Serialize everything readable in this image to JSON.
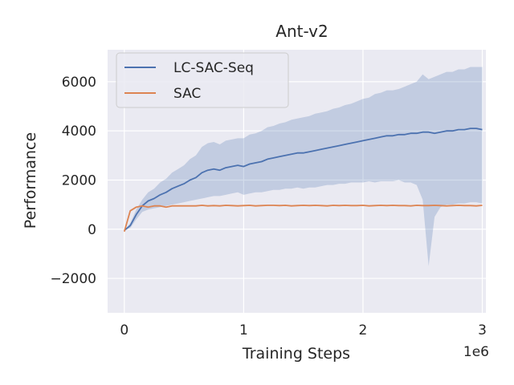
{
  "chart_data": {
    "type": "line",
    "title": "Ant-v2",
    "xlabel": "Training Steps",
    "ylabel": "Performance",
    "x_scale_label": "1e6",
    "xlim": [
      -140000,
      3030000
    ],
    "ylim": [
      -3400,
      7300
    ],
    "xticks": [
      0,
      1000000,
      2000000,
      3000000
    ],
    "xtick_labels": [
      "0",
      "1",
      "2",
      "3"
    ],
    "yticks": [
      -2000,
      0,
      2000,
      4000,
      6000
    ],
    "ytick_labels": [
      "−2000",
      "0",
      "2000",
      "4000",
      "6000"
    ],
    "grid": true,
    "legend_position": "top-left",
    "background_color": "#eaeaf2",
    "series": [
      {
        "name": "LC-SAC-Seq",
        "color": "#4c72b0",
        "x": [
          0,
          50000,
          100000,
          150000,
          200000,
          250000,
          300000,
          350000,
          400000,
          450000,
          500000,
          550000,
          600000,
          650000,
          700000,
          750000,
          800000,
          850000,
          900000,
          950000,
          1000000,
          1050000,
          1100000,
          1150000,
          1200000,
          1250000,
          1300000,
          1350000,
          1400000,
          1450000,
          1500000,
          1550000,
          1600000,
          1650000,
          1700000,
          1750000,
          1800000,
          1850000,
          1900000,
          1950000,
          2000000,
          2050000,
          2100000,
          2150000,
          2200000,
          2250000,
          2300000,
          2350000,
          2400000,
          2450000,
          2500000,
          2550000,
          2600000,
          2650000,
          2700000,
          2750000,
          2800000,
          2850000,
          2900000,
          2950000,
          3000000
        ],
        "values": [
          -50,
          150,
          600,
          950,
          1150,
          1250,
          1400,
          1500,
          1650,
          1750,
          1850,
          2000,
          2100,
          2300,
          2400,
          2450,
          2400,
          2500,
          2550,
          2600,
          2550,
          2650,
          2700,
          2750,
          2850,
          2900,
          2950,
          3000,
          3050,
          3100,
          3100,
          3150,
          3200,
          3250,
          3300,
          3350,
          3400,
          3450,
          3500,
          3550,
          3600,
          3650,
          3700,
          3750,
          3800,
          3800,
          3850,
          3850,
          3900,
          3900,
          3950,
          3950,
          3900,
          3950,
          4000,
          4000,
          4050,
          4050,
          4100,
          4100,
          4050
        ],
        "band_lower": [
          -50,
          50,
          400,
          700,
          800,
          850,
          900,
          950,
          1000,
          1050,
          1100,
          1150,
          1200,
          1250,
          1300,
          1350,
          1350,
          1400,
          1450,
          1500,
          1400,
          1450,
          1500,
          1500,
          1550,
          1600,
          1600,
          1650,
          1650,
          1700,
          1650,
          1700,
          1700,
          1750,
          1800,
          1800,
          1850,
          1850,
          1900,
          1900,
          1900,
          1950,
          1900,
          1950,
          1950,
          1950,
          2000,
          1900,
          1900,
          1800,
          1200,
          -1500,
          500,
          900,
          1000,
          1000,
          1050,
          1050,
          1100,
          1100,
          1050
        ],
        "band_upper": [
          -50,
          250,
          800,
          1200,
          1500,
          1650,
          1900,
          2050,
          2300,
          2450,
          2600,
          2850,
          3000,
          3350,
          3500,
          3550,
          3450,
          3600,
          3650,
          3700,
          3700,
          3850,
          3900,
          4000,
          4150,
          4200,
          4300,
          4350,
          4450,
          4500,
          4550,
          4600,
          4700,
          4750,
          4800,
          4900,
          4950,
          5050,
          5100,
          5200,
          5300,
          5350,
          5500,
          5550,
          5650,
          5650,
          5700,
          5800,
          5900,
          6000,
          6300,
          6100,
          6200,
          6300,
          6400,
          6400,
          6500,
          6500,
          6600,
          6600,
          6600
        ]
      },
      {
        "name": "SAC",
        "color": "#dd8452",
        "x": [
          0,
          50000,
          100000,
          150000,
          200000,
          250000,
          300000,
          350000,
          400000,
          450000,
          500000,
          550000,
          600000,
          650000,
          700000,
          750000,
          800000,
          850000,
          900000,
          950000,
          1000000,
          1050000,
          1100000,
          1150000,
          1200000,
          1250000,
          1300000,
          1350000,
          1400000,
          1450000,
          1500000,
          1550000,
          1600000,
          1650000,
          1700000,
          1750000,
          1800000,
          1850000,
          1900000,
          1950000,
          2000000,
          2050000,
          2100000,
          2150000,
          2200000,
          2250000,
          2300000,
          2350000,
          2400000,
          2450000,
          2500000,
          2550000,
          2600000,
          2650000,
          2700000,
          2750000,
          2800000,
          2850000,
          2900000,
          2950000,
          3000000
        ],
        "values": [
          -100,
          750,
          900,
          950,
          900,
          950,
          950,
          900,
          950,
          950,
          950,
          950,
          950,
          970,
          950,
          960,
          950,
          970,
          960,
          950,
          960,
          970,
          950,
          960,
          970,
          970,
          960,
          970,
          950,
          960,
          970,
          960,
          970,
          960,
          950,
          970,
          960,
          970,
          960,
          960,
          970,
          950,
          960,
          970,
          960,
          970,
          960,
          960,
          950,
          970,
          960,
          960,
          970,
          960,
          950,
          960,
          970,
          960,
          960,
          950,
          970
        ]
      }
    ]
  }
}
